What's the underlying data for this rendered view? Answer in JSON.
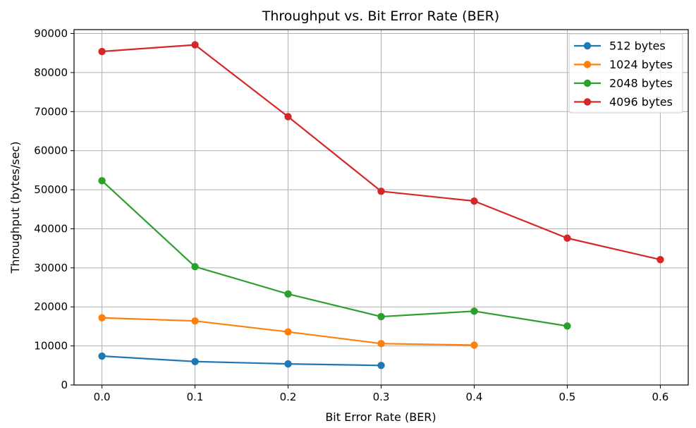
{
  "chart_data": {
    "type": "line",
    "title": "Throughput vs. Bit Error Rate (BER)",
    "xlabel": "Bit Error Rate (BER)",
    "ylabel": "Throughput (bytes/sec)",
    "xlim": [
      -0.03,
      0.63
    ],
    "ylim": [
      0,
      91000
    ],
    "xticks": [
      "0.0",
      "0.1",
      "0.2",
      "0.3",
      "0.4",
      "0.5",
      "0.6"
    ],
    "yticks": [
      "0",
      "10000",
      "20000",
      "30000",
      "40000",
      "50000",
      "60000",
      "70000",
      "80000",
      "90000"
    ],
    "grid": true,
    "legend_position": "top-right",
    "series": [
      {
        "name": "512 bytes",
        "color": "#1f77b4",
        "x": [
          0.0,
          0.1,
          0.2,
          0.3
        ],
        "y": [
          7400,
          6000,
          5400,
          5000
        ]
      },
      {
        "name": "1024 bytes",
        "color": "#ff7f0e",
        "x": [
          0.0,
          0.1,
          0.2,
          0.3,
          0.4
        ],
        "y": [
          17200,
          16400,
          13600,
          10600,
          10200
        ]
      },
      {
        "name": "2048 bytes",
        "color": "#2ca02c",
        "x": [
          0.0,
          0.1,
          0.2,
          0.3,
          0.4,
          0.5
        ],
        "y": [
          52300,
          30300,
          23300,
          17500,
          18900,
          15100
        ]
      },
      {
        "name": "4096 bytes",
        "color": "#d62728",
        "x": [
          0.0,
          0.1,
          0.2,
          0.3,
          0.4,
          0.5,
          0.6
        ],
        "y": [
          85400,
          87100,
          68700,
          49600,
          47100,
          37600,
          32100
        ]
      }
    ]
  }
}
